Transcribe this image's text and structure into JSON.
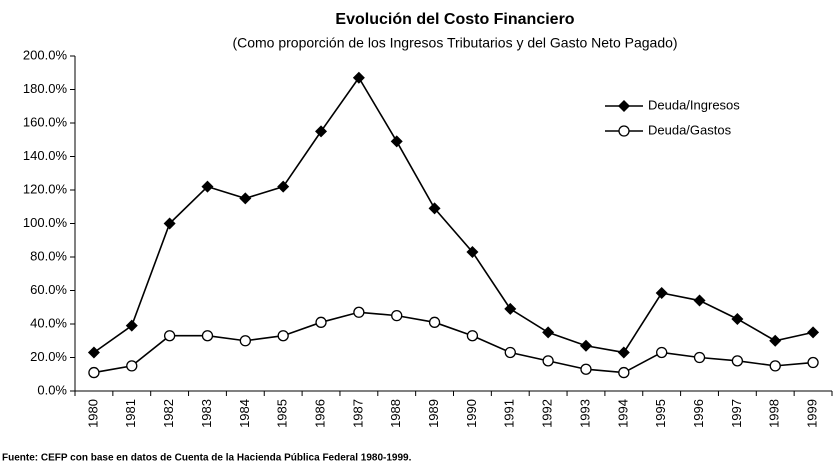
{
  "chart_data": {
    "type": "line",
    "title": "Evolución del Costo Financiero",
    "subtitle": "(Como proporción de los Ingresos Tributarios y del Gasto Neto Pagado)",
    "source": "Fuente: CEFP con base en datos de Cuenta de la Hacienda Pública Federal 1980-1999.",
    "categories": [
      "1980",
      "1981",
      "1982",
      "1983",
      "1984",
      "1985",
      "1986",
      "1987",
      "1988",
      "1989",
      "1990",
      "1991",
      "1992",
      "1993",
      "1994",
      "1995",
      "1996",
      "1997",
      "1998",
      "1999"
    ],
    "series": [
      {
        "name": "Deuda/Ingresos",
        "color": "#000000",
        "marker": "diamond",
        "values": [
          23,
          39,
          100,
          122,
          115,
          122,
          155,
          187,
          149,
          109,
          83,
          49,
          35,
          27,
          23,
          58.5,
          54,
          43,
          30,
          35
        ]
      },
      {
        "name": "Deuda/Gastos",
        "color": "#000000",
        "marker": "circle",
        "values": [
          11,
          15,
          33,
          33,
          30,
          33,
          41,
          47,
          45,
          41,
          33,
          23,
          18,
          13,
          11,
          23,
          20,
          18,
          15,
          17
        ]
      }
    ],
    "ylim": [
      0,
      200
    ],
    "yticks": [
      {
        "value": 0,
        "label": "0.0%"
      },
      {
        "value": 20,
        "label": "20.0%"
      },
      {
        "value": 40,
        "label": "40.0%"
      },
      {
        "value": 60,
        "label": "60.0%"
      },
      {
        "value": 80,
        "label": "80.0%"
      },
      {
        "value": 100,
        "label": "100.0%"
      },
      {
        "value": 120,
        "label": "120.0%"
      },
      {
        "value": 140,
        "label": "140.0%"
      },
      {
        "value": 160,
        "label": "160.0%"
      },
      {
        "value": 180,
        "label": "180.0%"
      },
      {
        "value": 200,
        "label": "200.0%"
      }
    ],
    "grid": false,
    "legend": "upper right"
  }
}
